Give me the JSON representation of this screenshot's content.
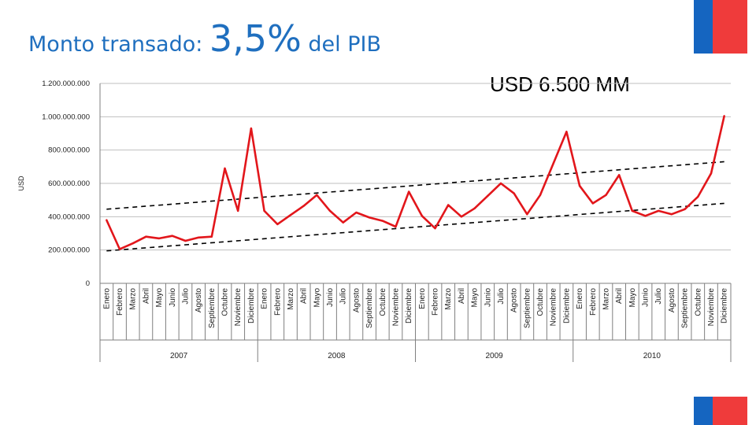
{
  "title": {
    "prefix": "Monto transado: ",
    "value": "3,5%",
    "suffix": " del PIB"
  },
  "annotation": "USD 6.500 MM",
  "colors": {
    "title": "#1f6fbf",
    "series": "#e2161b",
    "flag_blue": "#1565c0",
    "flag_red": "#ef3b3b"
  },
  "chart_data": {
    "type": "line",
    "ylabel": "USD",
    "ylim": [
      0,
      1200000000
    ],
    "yticks": [
      0,
      200000000,
      400000000,
      600000000,
      800000000,
      1000000000,
      1200000000
    ],
    "ytick_labels": [
      "0",
      "200.000.000",
      "400.000.000",
      "600.000.000",
      "800.000.000",
      "1.000.000.000",
      "1.200.000.000"
    ],
    "months": [
      "Enero",
      "Febrero",
      "Marzo",
      "Abril",
      "Mayo",
      "Junio",
      "Julio",
      "Agosto",
      "Septiembre",
      "Octubre",
      "Noviembre",
      "Diciembre"
    ],
    "years": [
      "2007",
      "2008",
      "2009",
      "2010"
    ],
    "series": [
      {
        "values": [
          380000000,
          205000000,
          240000000,
          280000000,
          270000000,
          285000000,
          255000000,
          275000000,
          280000000,
          690000000,
          435000000,
          930000000,
          435000000,
          355000000,
          410000000,
          465000000,
          530000000,
          435000000,
          365000000,
          425000000,
          395000000,
          375000000,
          340000000,
          550000000,
          405000000,
          330000000,
          470000000,
          400000000,
          450000000,
          525000000,
          600000000,
          540000000,
          415000000,
          530000000,
          720000000,
          910000000,
          585000000,
          480000000,
          530000000,
          650000000,
          435000000,
          405000000,
          435000000,
          415000000,
          445000000,
          520000000,
          660000000,
          1005000000
        ]
      }
    ],
    "trend_lines": [
      {
        "style": "dashed",
        "start": 445000000,
        "end": 730000000
      },
      {
        "style": "dashed",
        "start": 195000000,
        "end": 480000000
      }
    ],
    "grid": "horizontal"
  }
}
